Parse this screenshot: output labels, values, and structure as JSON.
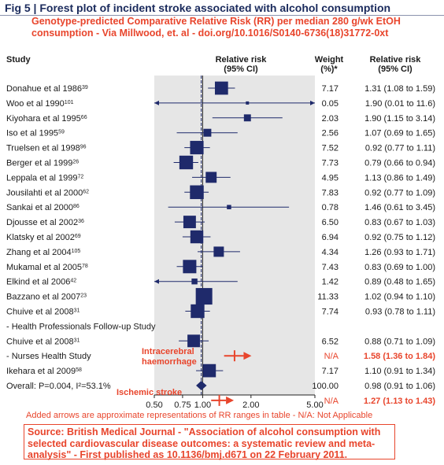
{
  "figure": {
    "label": "Fig 5",
    "title": "Forest plot of incident stroke associated with alcohol consumption",
    "subtitle": "Genotype-predicted Comparative Relative Risk (RR) per median 280 g/wk EtOH consumption - Via Millwood, et. al - doi.org/10.1016/S0140-6736(18)31772-0xt"
  },
  "headers": {
    "study": "Study",
    "rr": "Relative risk",
    "rr_ci": "(95% CI)",
    "weight": "Weight",
    "weight_unit": "(%)*",
    "rr2": "Relative risk",
    "rr2_ci": "(95% CI)"
  },
  "annotations": {
    "intracerebral": "Intracerebral\nhaemorrhage",
    "ischemic": "Ischemic stroke",
    "footnote": "Added  arrows are approximate representations of RR ranges in table - N/A: Not Applicable",
    "source": "Source: British Medical Journal - \"Association of alcohol consumption with selected cardiovascular disease outcomes: a systematic review and meta-analysis\" - First published as 10.1136/bmj.d671 on 22 February 2011."
  },
  "chart_data": {
    "type": "forest",
    "xlabel": "",
    "x_ticks": [
      "0.50",
      "0.75",
      "1.00",
      "2.00",
      "5.00"
    ],
    "xlim": [
      0.5,
      5.0
    ],
    "scale": "log",
    "reference_line": 1.0,
    "overall_line": 0.98,
    "rows": [
      {
        "study": "Donahue et al 1986",
        "sup": "39",
        "weight": "7.17",
        "rr": 1.31,
        "lo": 1.08,
        "hi": 1.59,
        "ci_text": "1.31 (1.08 to 1.59)"
      },
      {
        "study": "Woo et al 1990",
        "sup": "101",
        "weight": "0.05",
        "rr": 1.9,
        "lo": 0.01,
        "hi": 11.6,
        "ci_text": "1.90 (0.01 to 11.6)"
      },
      {
        "study": "Kiyohara et al 1995",
        "sup": "66",
        "weight": "2.03",
        "rr": 1.9,
        "lo": 1.15,
        "hi": 3.14,
        "ci_text": "1.90 (1.15 to 3.14)"
      },
      {
        "study": "Iso et al 1995",
        "sup": "59",
        "weight": "2.56",
        "rr": 1.07,
        "lo": 0.69,
        "hi": 1.65,
        "ci_text": "1.07 (0.69 to 1.65)"
      },
      {
        "study": "Truelsen et al 1998",
        "sup": "96",
        "weight": "7.52",
        "rr": 0.92,
        "lo": 0.77,
        "hi": 1.11,
        "ci_text": "0.92 (0.77 to 1.11)"
      },
      {
        "study": "Berger et al 1999",
        "sup": "26",
        "weight": "7.73",
        "rr": 0.79,
        "lo": 0.66,
        "hi": 0.94,
        "ci_text": "0.79 (0.66 to 0.94)"
      },
      {
        "study": "Leppala et al 1999",
        "sup": "72",
        "weight": "4.95",
        "rr": 1.13,
        "lo": 0.86,
        "hi": 1.49,
        "ci_text": "1.13 (0.86 to 1.49)"
      },
      {
        "study": "Jousilahti et al 2000",
        "sup": "62",
        "weight": "7.83",
        "rr": 0.92,
        "lo": 0.77,
        "hi": 1.09,
        "ci_text": "0.92 (0.77 to 1.09)"
      },
      {
        "study": "Sankai et al 2000",
        "sup": "86",
        "weight": "0.78",
        "rr": 1.46,
        "lo": 0.61,
        "hi": 3.45,
        "ci_text": "1.46 (0.61 to 3.45)"
      },
      {
        "study": "Djousse et al 2002",
        "sup": "36",
        "weight": "6.50",
        "rr": 0.83,
        "lo": 0.67,
        "hi": 1.03,
        "ci_text": "0.83 (0.67 to 1.03)"
      },
      {
        "study": "Klatsky et al 2002",
        "sup": "69",
        "weight": "6.94",
        "rr": 0.92,
        "lo": 0.75,
        "hi": 1.12,
        "ci_text": "0.92 (0.75 to 1.12)"
      },
      {
        "study": "Zhang et al 2004",
        "sup": "105",
        "weight": "4.34",
        "rr": 1.26,
        "lo": 0.93,
        "hi": 1.71,
        "ci_text": "1.26 (0.93 to 1.71)"
      },
      {
        "study": "Mukamal et al 2005",
        "sup": "78",
        "weight": "7.43",
        "rr": 0.83,
        "lo": 0.69,
        "hi": 1.0,
        "ci_text": "0.83 (0.69 to 1.00)"
      },
      {
        "study": "Elkind et al 2006",
        "sup": "42",
        "weight": "1.42",
        "rr": 0.89,
        "lo": 0.48,
        "hi": 1.65,
        "ci_text": "0.89 (0.48 to 1.65)"
      },
      {
        "study": "Bazzano et al 2007",
        "sup": "23",
        "weight": "11.33",
        "rr": 1.02,
        "lo": 0.94,
        "hi": 1.1,
        "ci_text": "1.02 (0.94 to 1.10)"
      },
      {
        "study": "Chuive et al 2008",
        "sup": "31",
        "weight": "7.74",
        "rr": 0.93,
        "lo": 0.78,
        "hi": 1.11,
        "ci_text": "0.93 (0.78 to 1.11)"
      },
      {
        "study": " - Health Professionals Follow-up Study",
        "sup": "",
        "weight": "",
        "rr": null,
        "lo": null,
        "hi": null,
        "ci_text": ""
      },
      {
        "study": "Chuive et al 2008",
        "sup": "31",
        "weight": "6.52",
        "rr": 0.88,
        "lo": 0.71,
        "hi": 1.09,
        "ci_text": "0.88 (0.71 to 1.09)"
      },
      {
        "study": " - Nurses Health Study",
        "sup": "",
        "weight": "N/A",
        "rr": 1.58,
        "lo": 1.36,
        "hi": 1.84,
        "ci_text": "1.58 (1.36 to 1.84)",
        "added": true
      },
      {
        "study": "Ikehara et al 2009",
        "sup": "58",
        "weight": "7.17",
        "rr": 1.1,
        "lo": 0.91,
        "hi": 1.34,
        "ci_text": "1.10 (0.91 to 1.34)"
      },
      {
        "study": "Overall: P=0.004, I²=53.1%",
        "sup": "",
        "weight": "100.00",
        "rr": 0.98,
        "lo": 0.91,
        "hi": 1.06,
        "ci_text": "0.98 (0.91 to 1.06)",
        "summary": true
      },
      {
        "study": "",
        "sup": "",
        "weight": "N/A",
        "rr": 1.27,
        "lo": 1.13,
        "hi": 1.43,
        "ci_text": "1.27 (1.13 to 1.43)",
        "added": true
      }
    ]
  },
  "colors": {
    "marker": "#1f2a6b",
    "accent_red": "#e8452c",
    "panel": "#e6e6e6",
    "title_blue": "#1a2a5c"
  }
}
